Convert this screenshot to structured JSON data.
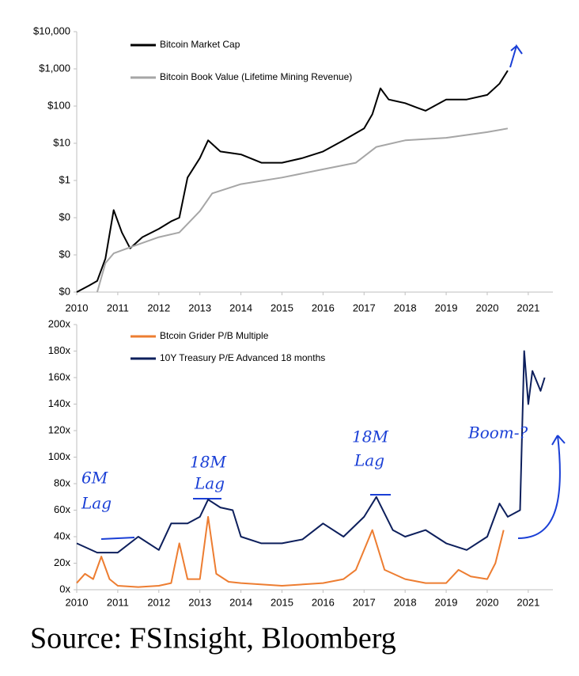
{
  "chart_data": [
    {
      "type": "line",
      "log_y": true,
      "xticks": [
        2010,
        2011,
        2012,
        2013,
        2014,
        2015,
        2016,
        2017,
        2018,
        2019,
        2020,
        2021
      ],
      "xlim": [
        2010,
        2021.6
      ],
      "ylim": [
        0.001,
        10000
      ],
      "yticks": [
        {
          "value": 10000,
          "label": "$10,000"
        },
        {
          "value": 1000,
          "label": "$1,000"
        },
        {
          "value": 100,
          "label": "$100"
        },
        {
          "value": 10,
          "label": "$10"
        },
        {
          "value": 1,
          "label": "$1"
        },
        {
          "value": 0.1,
          "label": "$0"
        },
        {
          "value": 0.01,
          "label": "$0"
        },
        {
          "value": 0.001,
          "label": "$0"
        }
      ],
      "series": [
        {
          "name": "Bitcoin Market Cap",
          "color": "#000000",
          "x": [
            2010.0,
            2010.3,
            2010.5,
            2010.7,
            2010.9,
            2011.1,
            2011.3,
            2011.6,
            2012.0,
            2012.3,
            2012.5,
            2012.7,
            2013.0,
            2013.2,
            2013.5,
            2014.0,
            2014.5,
            2015.0,
            2015.5,
            2016.0,
            2016.5,
            2017.0,
            2017.2,
            2017.4,
            2017.6,
            2018.0,
            2018.3,
            2018.5,
            2019.0,
            2019.5,
            2020.0,
            2020.3,
            2020.5
          ],
          "values": [
            0.001,
            0.0015,
            0.002,
            0.008,
            0.16,
            0.04,
            0.015,
            0.03,
            0.05,
            0.08,
            0.1,
            1.2,
            4,
            12,
            6,
            5,
            3,
            3,
            4,
            6,
            12,
            25,
            60,
            300,
            150,
            120,
            90,
            75,
            150,
            150,
            200,
            400,
            900
          ]
        },
        {
          "name": "Bitcoin Book Value (Lifetime Mining Revenue)",
          "color": "#a6a6a6",
          "x": [
            2010.5,
            2010.7,
            2010.9,
            2011.3,
            2012.0,
            2012.5,
            2013.0,
            2013.3,
            2014.0,
            2015.0,
            2016.0,
            2016.8,
            2017.3,
            2018.0,
            2019.0,
            2020.0,
            2020.5
          ],
          "values": [
            0.001,
            0.006,
            0.011,
            0.016,
            0.03,
            0.04,
            0.15,
            0.45,
            0.8,
            1.2,
            2,
            3,
            8,
            12,
            14,
            20,
            25
          ]
        }
      ]
    },
    {
      "type": "line",
      "xticks": [
        2010,
        2011,
        2012,
        2013,
        2014,
        2015,
        2016,
        2017,
        2018,
        2019,
        2020,
        2021
      ],
      "xlim": [
        2010,
        2021.6
      ],
      "ylim": [
        0,
        200
      ],
      "yticks": [
        {
          "value": 0,
          "label": "0x"
        },
        {
          "value": 20,
          "label": "20x"
        },
        {
          "value": 40,
          "label": "40x"
        },
        {
          "value": 60,
          "label": "60x"
        },
        {
          "value": 80,
          "label": "80x"
        },
        {
          "value": 100,
          "label": "100x"
        },
        {
          "value": 120,
          "label": "120x"
        },
        {
          "value": 140,
          "label": "140x"
        },
        {
          "value": 160,
          "label": "160x"
        },
        {
          "value": 180,
          "label": "180x"
        },
        {
          "value": 200,
          "label": "200x"
        }
      ],
      "series": [
        {
          "name": "Btcoin Grider P/B Multiple",
          "color": "#ed7d31",
          "x": [
            2010.0,
            2010.2,
            2010.4,
            2010.6,
            2010.8,
            2011.0,
            2011.5,
            2012.0,
            2012.3,
            2012.5,
            2012.7,
            2013.0,
            2013.2,
            2013.4,
            2013.7,
            2014.0,
            2015.0,
            2016.0,
            2016.5,
            2016.8,
            2017.2,
            2017.5,
            2018.0,
            2018.5,
            2019.0,
            2019.3,
            2019.6,
            2020.0,
            2020.2,
            2020.4
          ],
          "values": [
            5,
            12,
            8,
            25,
            8,
            3,
            2,
            3,
            5,
            35,
            8,
            8,
            55,
            12,
            6,
            5,
            3,
            5,
            8,
            15,
            45,
            15,
            8,
            5,
            5,
            15,
            10,
            8,
            20,
            45
          ]
        },
        {
          "name": "10Y Treasury P/E Advanced 18 months",
          "color": "#0d1f5c",
          "x": [
            2010.0,
            2010.5,
            2011.0,
            2011.5,
            2012.0,
            2012.3,
            2012.7,
            2013.0,
            2013.2,
            2013.5,
            2013.8,
            2014.0,
            2014.5,
            2015.0,
            2015.5,
            2016.0,
            2016.5,
            2017.0,
            2017.3,
            2017.7,
            2018.0,
            2018.5,
            2019.0,
            2019.5,
            2020.0,
            2020.3,
            2020.5,
            2020.8,
            2020.9,
            2021.0,
            2021.1,
            2021.3,
            2021.4
          ],
          "values": [
            35,
            28,
            28,
            40,
            30,
            50,
            50,
            55,
            68,
            62,
            60,
            40,
            35,
            35,
            38,
            50,
            40,
            55,
            70,
            45,
            40,
            45,
            35,
            30,
            40,
            65,
            55,
            60,
            180,
            140,
            165,
            150,
            160
          ]
        }
      ],
      "annotations": [
        "6M",
        "Lag",
        "18M",
        "Lag",
        "18M",
        "Lag",
        "Boom-?"
      ]
    }
  ],
  "source": "Source: FSInsight, Bloomberg"
}
